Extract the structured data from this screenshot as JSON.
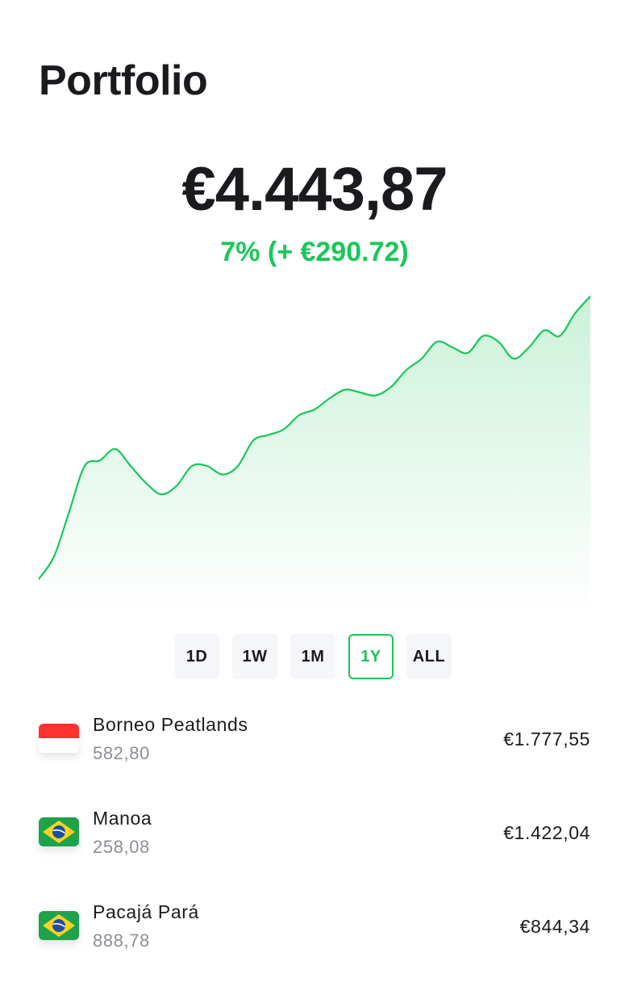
{
  "page": {
    "title": "Portfolio"
  },
  "summary": {
    "balance": "€4.443,87",
    "change": "7% (+ €290.72)",
    "change_color": "#19c758"
  },
  "chart_data": {
    "type": "area",
    "series": [
      {
        "values": [
          0.0,
          0.08,
          0.24,
          0.4,
          0.42,
          0.46,
          0.4,
          0.34,
          0.3,
          0.33,
          0.4,
          0.4,
          0.37,
          0.4,
          0.49,
          0.51,
          0.53,
          0.58,
          0.6,
          0.64,
          0.67,
          0.66,
          0.65,
          0.68,
          0.74,
          0.78,
          0.84,
          0.82,
          0.8,
          0.86,
          0.84,
          0.78,
          0.82,
          0.88,
          0.86,
          0.94,
          1.0
        ]
      }
    ],
    "color": "#19c758",
    "fill_top": "#c8f1d7"
  },
  "ranges": {
    "items": [
      "1D",
      "1W",
      "1M",
      "1Y",
      "ALL"
    ],
    "selected": "1Y"
  },
  "holdings": [
    {
      "name": "Borneo Peatlands",
      "quantity": "582,80",
      "value": "€1.777,55",
      "flag": "indonesia-flag-icon"
    },
    {
      "name": "Manoa",
      "quantity": "258,08",
      "value": "€1.422,04",
      "flag": "brazil-flag-icon"
    },
    {
      "name": "Pacajá Pará",
      "quantity": "888,78",
      "value": "€844,34",
      "flag": "brazil-flag-icon"
    }
  ]
}
